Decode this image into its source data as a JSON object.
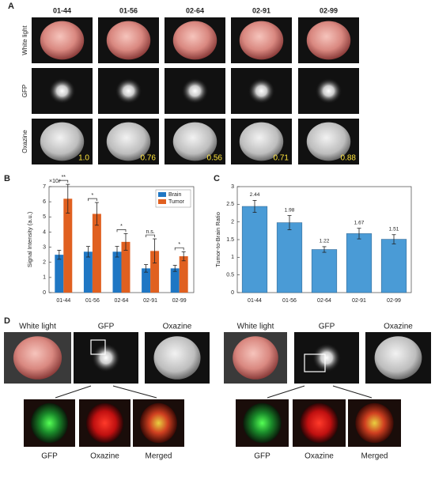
{
  "figure_labels": {
    "a": "A",
    "b": "B",
    "c": "C",
    "d": "D"
  },
  "panel_a": {
    "samples": [
      "01-44",
      "01-56",
      "02-64",
      "02-91",
      "02-99"
    ],
    "rows": [
      "White light",
      "GFP",
      "Oxazine"
    ],
    "ratios": [
      "1.0",
      "0.76",
      "0.56",
      "0.71",
      "0.88"
    ]
  },
  "chart_data": [
    {
      "type": "bar",
      "y_label": "Signal Intensity (a.u.)",
      "multiplier": "×10⁴",
      "categories": [
        "01-44",
        "01-56",
        "02-64",
        "02-91",
        "02-99"
      ],
      "series": [
        {
          "name": "Brain",
          "color": "#1f77c4",
          "values": [
            2.5,
            2.7,
            2.7,
            1.6,
            1.6
          ],
          "errors": [
            0.3,
            0.35,
            0.35,
            0.25,
            0.2
          ]
        },
        {
          "name": "Tumor",
          "color": "#e06020",
          "values": [
            6.2,
            5.2,
            3.35,
            2.75,
            2.4
          ],
          "errors": [
            0.95,
            0.75,
            0.55,
            0.8,
            0.3
          ]
        }
      ],
      "significance": [
        "**",
        "*",
        "*",
        "n.s.",
        "*"
      ],
      "ylim": [
        0,
        7
      ],
      "yticks": [
        0,
        1,
        2,
        3,
        4,
        5,
        6,
        7
      ],
      "legend": "upper right"
    },
    {
      "type": "bar",
      "y_label": "Tumor-to-Brain Ratio",
      "categories": [
        "01-44",
        "01-56",
        "02-64",
        "02-91",
        "02-99"
      ],
      "color": "#4a9bd6",
      "values": [
        2.44,
        1.98,
        1.22,
        1.67,
        1.51
      ],
      "errors": [
        0.17,
        0.2,
        0.08,
        0.15,
        0.13
      ],
      "ylim": [
        0,
        3
      ],
      "yticks": [
        0,
        0.5,
        1,
        1.5,
        2,
        2.5,
        3
      ]
    }
  ],
  "panel_d": {
    "left": {
      "top": [
        "White light",
        "GFP",
        "Oxazine"
      ],
      "bottom": [
        "GFP",
        "Oxazine",
        "Merged"
      ]
    },
    "right": {
      "top": [
        "White light",
        "GFP",
        "Oxazine"
      ],
      "bottom": [
        "GFP",
        "Oxazine",
        "Merged"
      ]
    }
  }
}
